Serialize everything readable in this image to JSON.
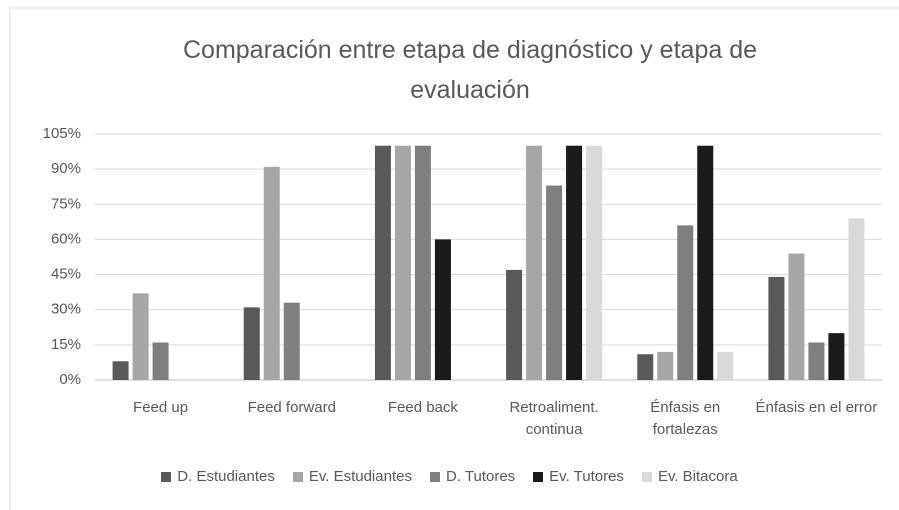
{
  "chart_data": {
    "type": "bar",
    "title": "Comparación entre etapa de diagnóstico y etapa de evaluación",
    "categories": [
      "Feed up",
      "Feed forward",
      "Feed back",
      "Retroaliment. continua",
      "Énfasis en fortalezas",
      "Énfasis en el error"
    ],
    "series": [
      {
        "name": "D. Estudiantes",
        "color": "#595959",
        "values": [
          8,
          31,
          100,
          47,
          11,
          44
        ]
      },
      {
        "name": "Ev. Estudiantes",
        "color": "#a6a6a6",
        "values": [
          37,
          91,
          100,
          100,
          12,
          54
        ]
      },
      {
        "name": "D. Tutores",
        "color": "#7f7f7f",
        "values": [
          16,
          33,
          100,
          83,
          66,
          16
        ]
      },
      {
        "name": "Ev. Tutores",
        "color": "#1a1a1a",
        "values": [
          0,
          0,
          60,
          100,
          100,
          20
        ]
      },
      {
        "name": "Ev. Bitacora",
        "color": "#d9d9d9",
        "values": [
          0,
          0,
          0,
          100,
          12,
          69
        ]
      }
    ],
    "ylim": [
      0,
      105
    ],
    "yticks": [
      {
        "value": 0,
        "label": "0%"
      },
      {
        "value": 15,
        "label": "15%"
      },
      {
        "value": 30,
        "label": "30%"
      },
      {
        "value": 45,
        "label": "45%"
      },
      {
        "value": 60,
        "label": "60%"
      },
      {
        "value": 75,
        "label": "75%"
      },
      {
        "value": 90,
        "label": "90%"
      },
      {
        "value": 105,
        "label": "105%"
      }
    ],
    "grid": true,
    "legend": "bottom"
  }
}
